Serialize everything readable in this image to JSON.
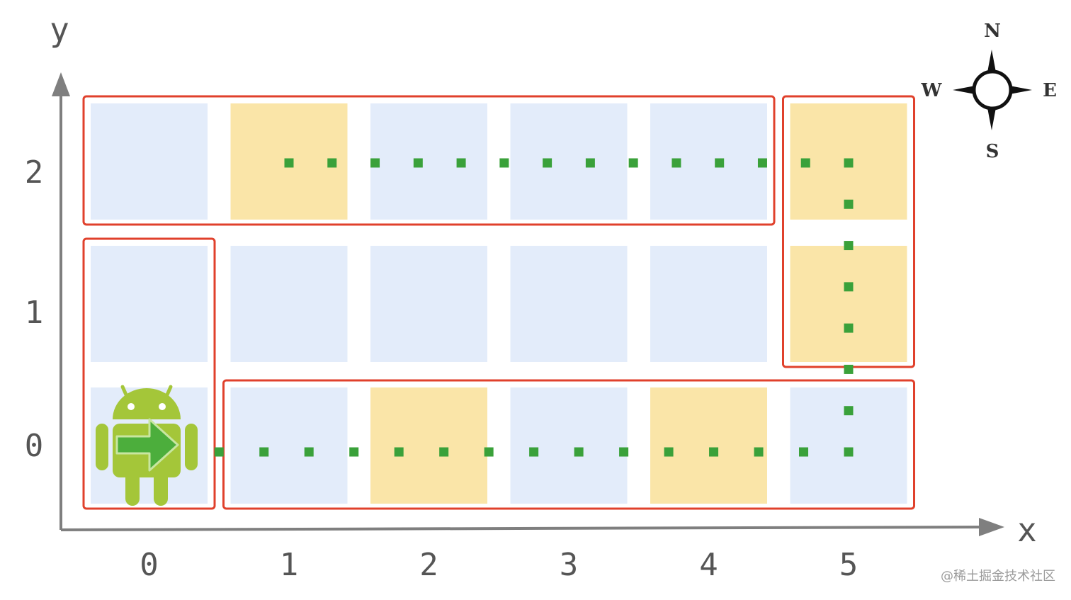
{
  "axes": {
    "x_label": "x",
    "y_label": "y",
    "x_ticks": [
      "0",
      "1",
      "2",
      "3",
      "4",
      "5"
    ],
    "y_ticks": [
      "0",
      "1",
      "2"
    ]
  },
  "compass": {
    "north": "N",
    "south": "S",
    "east": "E",
    "west": "W"
  },
  "grid": {
    "columns": 6,
    "rows": 3,
    "highlighted_cells": [
      [
        1,
        2
      ],
      [
        5,
        2
      ],
      [
        5,
        1
      ],
      [
        2,
        0
      ],
      [
        4,
        0
      ]
    ],
    "robot_cell": [
      0,
      0
    ],
    "robot_heading": "east"
  },
  "path": [
    [
      0.5,
      0
    ],
    [
      5,
      0
    ],
    [
      5,
      2
    ],
    [
      1,
      2
    ]
  ],
  "segments": [
    {
      "name": "segment-bottom",
      "cols": [
        1,
        5
      ],
      "rows": [
        0,
        0
      ]
    },
    {
      "name": "segment-start",
      "cols": [
        0,
        0
      ],
      "rows": [
        0,
        1
      ]
    },
    {
      "name": "segment-right",
      "cols": [
        5,
        5
      ],
      "rows": [
        1,
        2
      ]
    },
    {
      "name": "segment-top",
      "cols": [
        0,
        4
      ],
      "rows": [
        2,
        2
      ]
    }
  ],
  "colors": {
    "cell": "#e3ecfa",
    "cell_highlight": "#fae5a8",
    "segment_border": "#e0412c",
    "path_dot": "#3aa13a",
    "axis": "#7f7f7f",
    "robot": "#a4c639",
    "arrow": "#4cae3c"
  },
  "watermark": "@稀土掘金技术社区"
}
